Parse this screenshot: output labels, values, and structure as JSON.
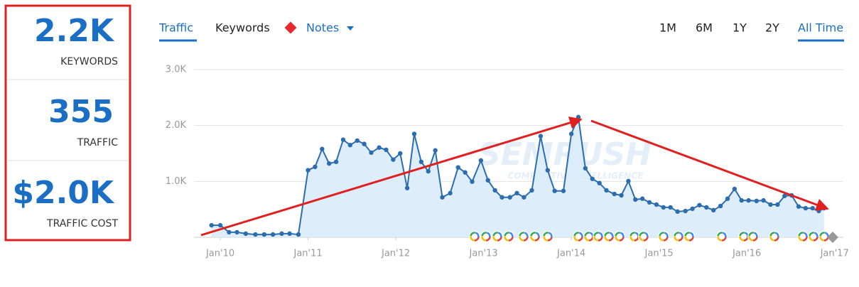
{
  "stats": [
    {
      "value": "2.2K",
      "label": "KEYWORDS"
    },
    {
      "value": "355",
      "label": "TRAFFIC"
    },
    {
      "value": "$2.0K",
      "label": "TRAFFIC COST"
    }
  ],
  "tabs": [
    "Traffic",
    "Keywords",
    "Notes"
  ],
  "ranges": [
    "1M",
    "6M",
    "1Y",
    "2Y",
    "All Time"
  ],
  "watermark": "SEMRUSH",
  "watermark_sub": "COMPETITIVE INTELLIGENCE",
  "chart_data": {
    "type": "line",
    "color": "#2c6db0",
    "area_color": "#d8eaf9",
    "x": [
      2009.9,
      2010.0,
      2010.1,
      2010.19,
      2010.29,
      2010.4,
      2010.5,
      2010.6,
      2010.7,
      2010.79,
      2010.89,
      2011.0,
      2011.08,
      2011.16,
      2011.24,
      2011.32,
      2011.4,
      2011.48,
      2011.56,
      2011.64,
      2011.72,
      2011.81,
      2011.89,
      2011.97,
      2012.05,
      2012.13,
      2012.21,
      2012.29,
      2012.37,
      2012.45,
      2012.53,
      2012.62,
      2012.71,
      2012.79,
      2012.87,
      2012.97,
      2013.05,
      2013.13,
      2013.21,
      2013.3,
      2013.38,
      2013.46,
      2013.55,
      2013.65,
      2013.73,
      2013.81,
      2013.91,
      2014.0,
      2014.08,
      2014.16,
      2014.24,
      2014.32,
      2014.4,
      2014.49,
      2014.57,
      2014.65,
      2014.73,
      2014.81,
      2014.89,
      2014.97,
      2015.05,
      2015.13,
      2015.21,
      2015.3,
      2015.38,
      2015.46,
      2015.54,
      2015.62,
      2015.7,
      2015.78,
      2015.86,
      2015.94,
      2016.02,
      2016.11,
      2016.19,
      2016.27,
      2016.35,
      2016.43,
      2016.51,
      2016.59,
      2016.67,
      2016.75,
      2016.82,
      2016.88
    ],
    "values": [
      215,
      215,
      90,
      90,
      65,
      50,
      50,
      50,
      65,
      65,
      50,
      1200,
      1260,
      1580,
      1320,
      1350,
      1745,
      1650,
      1730,
      1670,
      1515,
      1605,
      1565,
      1390,
      1500,
      880,
      1850,
      1350,
      1180,
      1555,
      715,
      790,
      1250,
      1160,
      995,
      1375,
      1020,
      840,
      715,
      715,
      790,
      715,
      840,
      1810,
      1200,
      830,
      830,
      1850,
      2150,
      1235,
      1045,
      970,
      840,
      775,
      750,
      1005,
      675,
      690,
      625,
      585,
      535,
      535,
      460,
      470,
      510,
      575,
      535,
      485,
      560,
      690,
      865,
      660,
      660,
      650,
      660,
      585,
      585,
      740,
      750,
      550,
      520,
      520,
      470,
      520
    ],
    "xlim": [
      2009.7,
      2017.1
    ],
    "xticks": [
      {
        "value": 2010,
        "label": "Jan'10"
      },
      {
        "value": 2011,
        "label": "Jan'11"
      },
      {
        "value": 2012,
        "label": "Jan'12"
      },
      {
        "value": 2013,
        "label": "Jan'13"
      },
      {
        "value": 2014,
        "label": "Jan'14"
      },
      {
        "value": 2015,
        "label": "Jan'15"
      },
      {
        "value": 2016,
        "label": "Jan'16"
      },
      {
        "value": 2017,
        "label": "Jan'17"
      }
    ],
    "ylim": [
      0,
      3000
    ],
    "yticks": [
      {
        "value": 1000,
        "label": "1.0K"
      },
      {
        "value": 2000,
        "label": "2.0K"
      },
      {
        "value": 3000,
        "label": "3.0K"
      }
    ],
    "grid": true
  }
}
